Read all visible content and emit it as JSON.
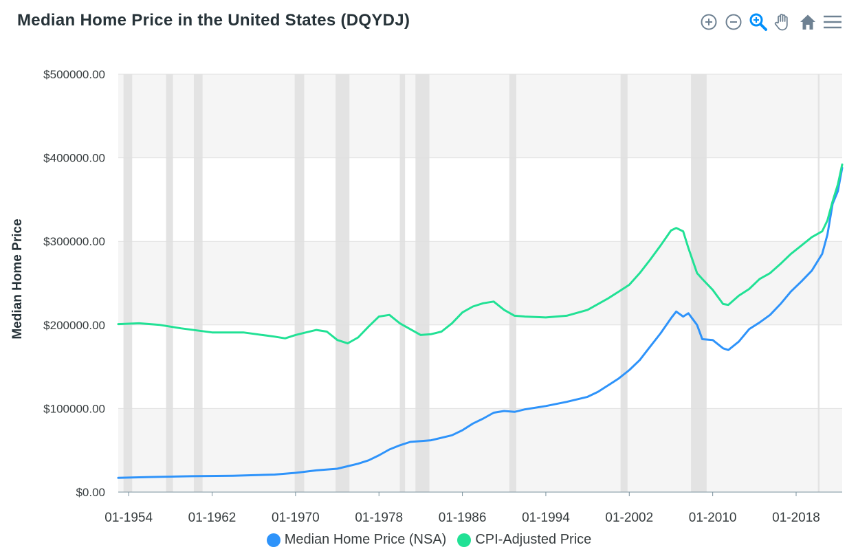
{
  "title": "Median Home Price in the United States (DQYDJ)",
  "toolbar": {
    "icons": [
      "zoom-in-icon",
      "zoom-out-icon",
      "selection-zoom-icon",
      "pan-hand-icon",
      "home-reset-icon",
      "menu-icon"
    ],
    "active": "selection-zoom-icon"
  },
  "colors": {
    "nsa": "#2e93fa",
    "cpi": "#21e195",
    "recession": "#e3e3e3",
    "grid": "#e0e0e0",
    "band": "#f5f5f5",
    "icon": "#6e8192",
    "icon_active": "#008ffb"
  },
  "chart_data": {
    "type": "line",
    "title": "Median Home Price in the United States (DQYDJ)",
    "xlabel": "",
    "ylabel": "Median Home Price",
    "ylim": [
      0,
      500000
    ],
    "xlim": [
      "1953-01",
      "2022-06"
    ],
    "y_ticks": [
      "$0.00",
      "$100000.00",
      "$200000.00",
      "$300000.00",
      "$400000.00",
      "$500000.00"
    ],
    "y_tick_values": [
      0,
      100000,
      200000,
      300000,
      400000,
      500000
    ],
    "x_ticks": [
      "01-1954",
      "01-1962",
      "01-1970",
      "01-1978",
      "01-1986",
      "01-1994",
      "01-2002",
      "01-2010",
      "01-2018"
    ],
    "x_tick_years": [
      1954,
      1962,
      1970,
      1978,
      1986,
      1994,
      2002,
      2010,
      2018
    ],
    "grid": true,
    "legend_position": "bottom-center",
    "recessions": [
      [
        "1953-07",
        "1954-05"
      ],
      [
        "1957-08",
        "1958-04"
      ],
      [
        "1960-04",
        "1961-02"
      ],
      [
        "1969-12",
        "1970-11"
      ],
      [
        "1973-11",
        "1975-03"
      ],
      [
        "1980-01",
        "1980-07"
      ],
      [
        "1981-07",
        "1982-11"
      ],
      [
        "1990-07",
        "1991-03"
      ],
      [
        "2001-03",
        "2001-11"
      ],
      [
        "2007-12",
        "2009-06"
      ],
      [
        "2020-02",
        "2020-04"
      ]
    ],
    "series": [
      {
        "name": "Median Home Price (NSA)",
        "x": [
          "1953-01",
          "1956-01",
          "1960-01",
          "1964-01",
          "1968-01",
          "1970-01",
          "1972-01",
          "1974-01",
          "1976-01",
          "1977-01",
          "1978-01",
          "1979-01",
          "1980-01",
          "1981-01",
          "1983-01",
          "1985-01",
          "1986-01",
          "1987-01",
          "1988-01",
          "1989-01",
          "1990-01",
          "1991-01",
          "1992-01",
          "1994-01",
          "1996-01",
          "1998-01",
          "1999-01",
          "2000-01",
          "2001-01",
          "2002-01",
          "2003-01",
          "2004-01",
          "2005-01",
          "2006-01",
          "2006-07",
          "2007-03",
          "2007-09",
          "2008-07",
          "2009-01",
          "2010-01",
          "2011-01",
          "2011-07",
          "2012-07",
          "2013-07",
          "2014-07",
          "2015-07",
          "2016-07",
          "2017-07",
          "2018-07",
          "2019-07",
          "2020-07",
          "2021-01",
          "2021-07",
          "2022-01",
          "2022-06"
        ],
        "values": [
          17000,
          18000,
          19000,
          19500,
          21000,
          23000,
          26000,
          28000,
          34000,
          38000,
          44000,
          51000,
          56000,
          60000,
          62000,
          68000,
          74000,
          82000,
          88000,
          95000,
          97000,
          96000,
          99000,
          103000,
          108000,
          114000,
          120000,
          128000,
          136000,
          146000,
          158000,
          174000,
          190000,
          208000,
          216000,
          210000,
          214000,
          200000,
          183000,
          182000,
          172000,
          170000,
          180000,
          195000,
          203000,
          212000,
          225000,
          240000,
          252000,
          265000,
          285000,
          308000,
          345000,
          360000,
          388000
        ]
      },
      {
        "name": "CPI-Adjusted Price",
        "x": [
          "1953-01",
          "1955-01",
          "1957-01",
          "1959-01",
          "1962-01",
          "1965-01",
          "1968-01",
          "1969-01",
          "1970-01",
          "1971-01",
          "1972-01",
          "1973-01",
          "1974-01",
          "1975-01",
          "1976-01",
          "1977-01",
          "1978-01",
          "1979-01",
          "1980-01",
          "1981-01",
          "1982-01",
          "1983-01",
          "1984-01",
          "1985-01",
          "1986-01",
          "1987-01",
          "1988-01",
          "1989-01",
          "1990-01",
          "1991-01",
          "1992-01",
          "1994-01",
          "1996-01",
          "1998-01",
          "1999-01",
          "2000-01",
          "2001-01",
          "2002-01",
          "2003-01",
          "2004-01",
          "2005-01",
          "2006-01",
          "2006-07",
          "2007-03",
          "2007-09",
          "2008-07",
          "2009-01",
          "2010-01",
          "2011-01",
          "2011-07",
          "2012-07",
          "2013-07",
          "2014-07",
          "2015-07",
          "2016-07",
          "2017-07",
          "2018-07",
          "2019-07",
          "2020-07",
          "2021-01",
          "2021-07",
          "2022-01",
          "2022-06"
        ],
        "values": [
          201000,
          202000,
          200000,
          196000,
          191000,
          191000,
          186000,
          184000,
          188000,
          191000,
          194000,
          192000,
          182000,
          178000,
          185000,
          198000,
          210000,
          212000,
          202000,
          195000,
          188000,
          189000,
          192000,
          202000,
          215000,
          222000,
          226000,
          228000,
          218000,
          211000,
          210000,
          209000,
          211000,
          218000,
          225000,
          232000,
          240000,
          248000,
          262000,
          278000,
          295000,
          313000,
          316000,
          312000,
          292000,
          262000,
          255000,
          242000,
          225000,
          224000,
          235000,
          243000,
          255000,
          262000,
          273000,
          285000,
          295000,
          305000,
          312000,
          325000,
          348000,
          368000,
          392000
        ]
      }
    ]
  }
}
